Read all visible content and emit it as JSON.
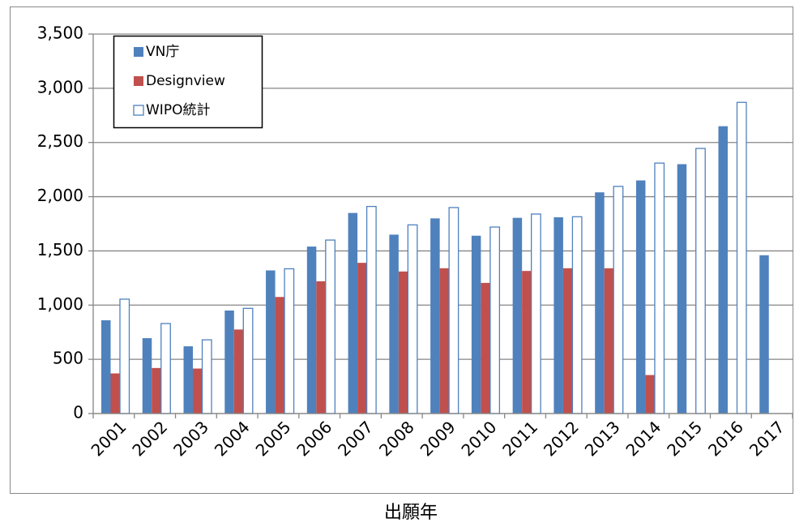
{
  "chart_data": {
    "type": "bar",
    "x_label": "出願年",
    "categories": [
      "2001",
      "2002",
      "2003",
      "2004",
      "2005",
      "2006",
      "2007",
      "2008",
      "2009",
      "2010",
      "2011",
      "2012",
      "2013",
      "2014",
      "2015",
      "2016",
      "2017"
    ],
    "series": [
      {
        "name": "VN庁",
        "color": "#4f81bd",
        "fill": "#4f81bd",
        "values": [
          860,
          695,
          620,
          950,
          1320,
          1540,
          1850,
          1650,
          1800,
          1640,
          1805,
          1810,
          2040,
          2150,
          2300,
          2650,
          1460
        ]
      },
      {
        "name": "Designview",
        "color": "#c0504d",
        "fill": "#c0504d",
        "values": [
          370,
          420,
          415,
          775,
          1075,
          1220,
          1390,
          1310,
          1340,
          1205,
          1315,
          1340,
          1340,
          355,
          null,
          null,
          null
        ]
      },
      {
        "name": "WIPO統計",
        "color": "#4f81bd",
        "fill": "#ffffff",
        "values": [
          1055,
          830,
          680,
          970,
          1335,
          1600,
          1910,
          1740,
          1900,
          1720,
          1840,
          1815,
          2095,
          2310,
          2445,
          2870,
          null
        ]
      }
    ],
    "ylim": [
      0,
      3500
    ],
    "yticks": [
      0,
      {
        "value": 500,
        "label": "500"
      },
      {
        "value": 1000,
        "label": "1,000"
      },
      {
        "value": 1500,
        "label": "1,500"
      },
      {
        "value": 2000,
        "label": "2,000"
      },
      {
        "value": 2500,
        "label": "2,500"
      },
      {
        "value": 3000,
        "label": "3,000"
      },
      {
        "value": 3500,
        "label": "3,500"
      }
    ],
    "grid": true,
    "legend": "upper left"
  }
}
